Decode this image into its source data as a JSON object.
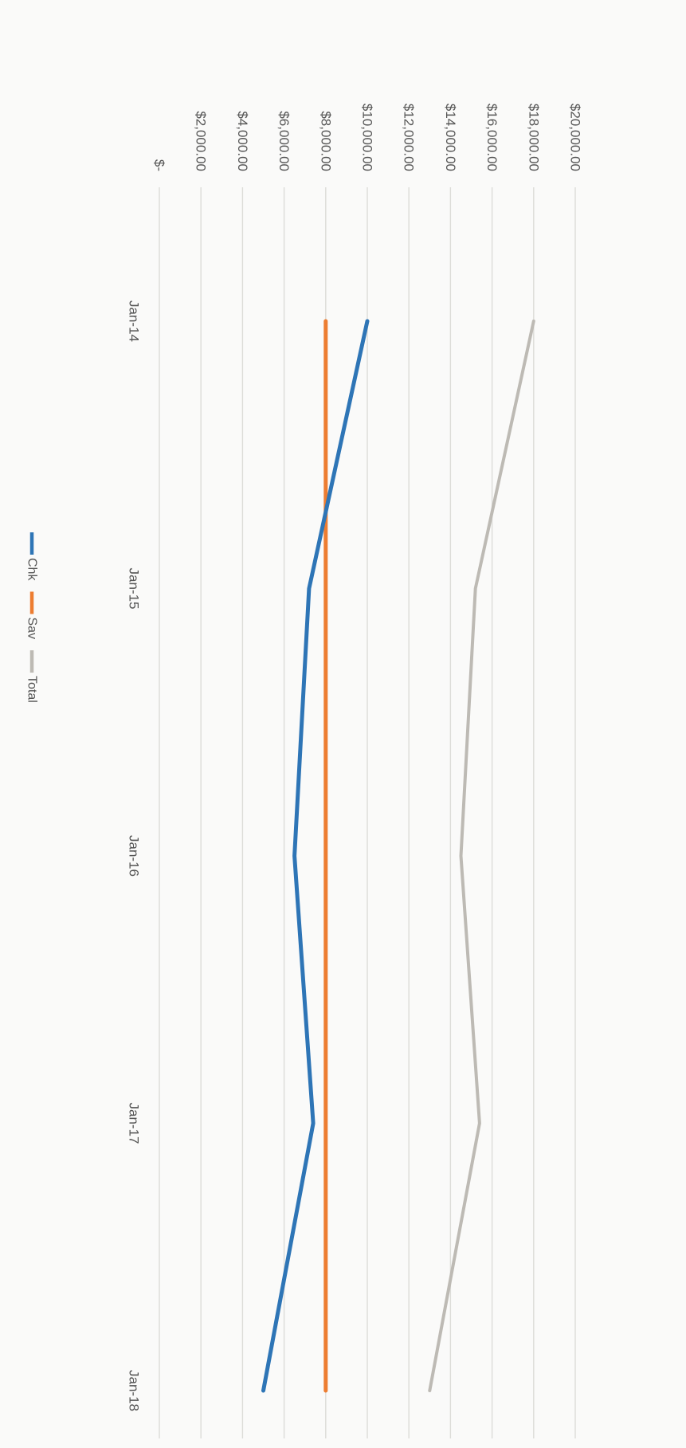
{
  "chart_data": {
    "type": "line",
    "x": [
      "Jan-14",
      "Jan-15",
      "Jan-16",
      "Jan-17",
      "Jan-18"
    ],
    "series": [
      {
        "name": "Chk",
        "color": "#2e75b6",
        "values": [
          10000,
          7200,
          6500,
          7400,
          5000
        ]
      },
      {
        "name": "Sav",
        "color": "#ed7d31",
        "values": [
          8000,
          8000,
          8000,
          8000,
          8000
        ]
      },
      {
        "name": "Total",
        "color": "#bdbab4",
        "values": [
          18000,
          15200,
          14500,
          15400,
          13000
        ]
      }
    ],
    "y_ticks": [
      "$-",
      "$2,000.00",
      "$4,000.00",
      "$6,000.00",
      "$8,000.00",
      "$10,000.00",
      "$12,000.00",
      "$14,000.00",
      "$16,000.00",
      "$18,000.00",
      "$20,000.00"
    ],
    "ylim": [
      0,
      20000
    ],
    "grid": true,
    "legend_position": "bottom",
    "orientation": "rotated 90° clockwise on the page"
  }
}
